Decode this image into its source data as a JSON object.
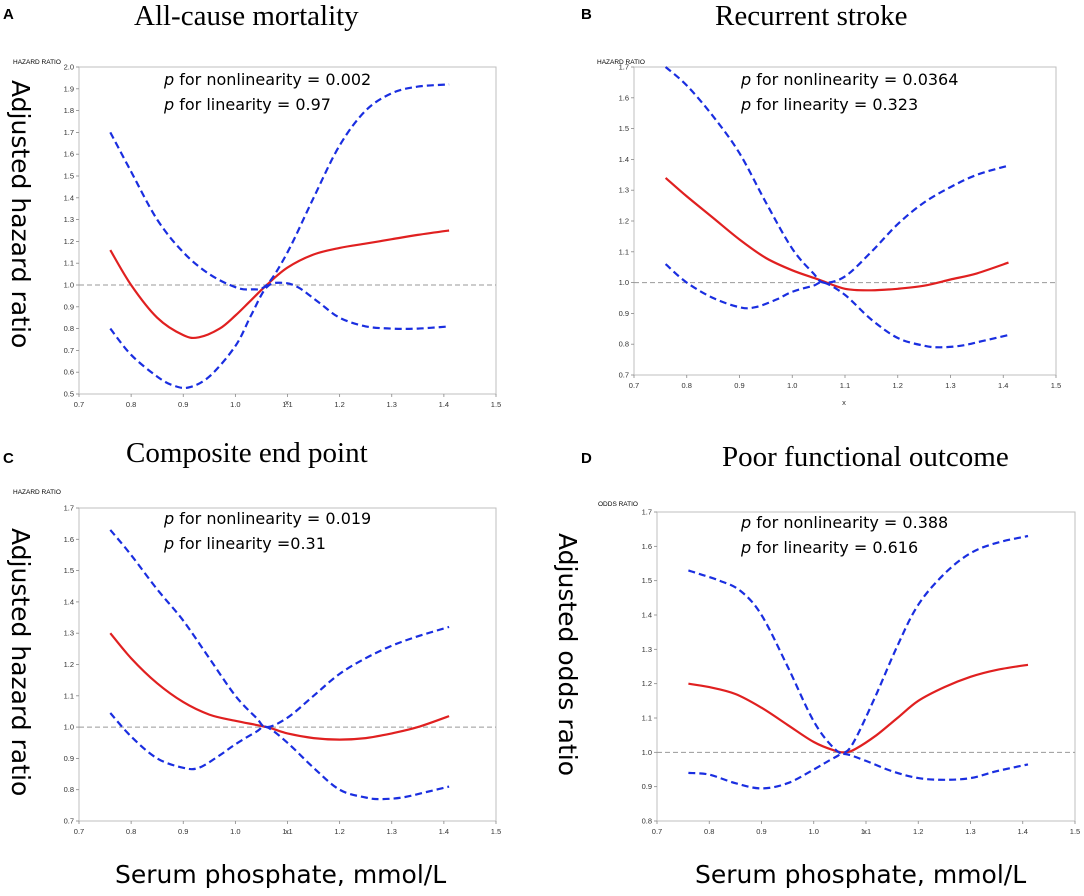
{
  "figure": {
    "shared_xlabel": "Serum phosphate, mmol/L",
    "colors": {
      "estimate": "#e02020",
      "ci": "#1a2ee0",
      "reference": "#999999",
      "frame": "#bfbfbf"
    }
  },
  "chart_data": [
    {
      "type": "line",
      "panel": "A",
      "title": "All-cause mortality",
      "ratio_label": "HAZARD RATIO",
      "outer_ylabel": "Adjusted hazard ratio",
      "xlabel": "x",
      "xlim": [
        0.7,
        1.5
      ],
      "ylim": [
        0.5,
        2.0
      ],
      "xticks": [
        "0.7",
        "0.8",
        "0.9",
        "1.0",
        "1.1",
        "1.2",
        "1.3",
        "1.4",
        "1.5"
      ],
      "yticks": [
        "0.5",
        "0.6",
        "0.7",
        "0.8",
        "0.9",
        "1.0",
        "1.1",
        "1.2",
        "1.3",
        "1.4",
        "1.5",
        "1.6",
        "1.7",
        "1.8",
        "1.9",
        "2.0"
      ],
      "reference_line": 1.0,
      "annotations": [
        "p",
        "for nonlinearity = 0.002",
        "p",
        "for linearity = 0.97"
      ],
      "series": [
        {
          "name": "estimate",
          "style": "solid",
          "x": [
            0.76,
            0.8,
            0.85,
            0.9,
            0.93,
            0.97,
            1.0,
            1.03,
            1.06,
            1.1,
            1.15,
            1.2,
            1.25,
            1.3,
            1.35,
            1.41
          ],
          "y": [
            1.16,
            1.0,
            0.85,
            0.77,
            0.76,
            0.8,
            0.86,
            0.93,
            1.0,
            1.08,
            1.14,
            1.17,
            1.19,
            1.21,
            1.23,
            1.25
          ]
        },
        {
          "name": "upper 95% CI",
          "style": "dashed",
          "x": [
            0.76,
            0.8,
            0.85,
            0.9,
            0.95,
            1.0,
            1.03,
            1.06,
            1.1,
            1.15,
            1.2,
            1.25,
            1.3,
            1.35,
            1.41
          ],
          "y": [
            1.7,
            1.52,
            1.3,
            1.15,
            1.05,
            0.99,
            0.98,
            1.0,
            1.15,
            1.4,
            1.64,
            1.8,
            1.88,
            1.91,
            1.92
          ]
        },
        {
          "name": "lower 95% CI",
          "style": "dashed",
          "x": [
            0.76,
            0.8,
            0.85,
            0.88,
            0.91,
            0.95,
            1.0,
            1.03,
            1.06,
            1.09,
            1.12,
            1.16,
            1.2,
            1.25,
            1.3,
            1.35,
            1.41
          ],
          "y": [
            0.8,
            0.68,
            0.58,
            0.54,
            0.53,
            0.58,
            0.72,
            0.86,
            0.99,
            1.01,
            0.99,
            0.92,
            0.85,
            0.81,
            0.8,
            0.8,
            0.81
          ]
        }
      ]
    },
    {
      "type": "line",
      "panel": "B",
      "title": "Recurrent stroke",
      "ratio_label": "HAZARD RATIO",
      "outer_ylabel": "",
      "xlabel": "x",
      "xlim": [
        0.7,
        1.5
      ],
      "ylim": [
        0.7,
        1.7
      ],
      "xticks": [
        "0.7",
        "0.8",
        "0.9",
        "1.0",
        "1.1",
        "1.2",
        "1.3",
        "1.4",
        "1.5"
      ],
      "yticks": [
        "0.7",
        "0.8",
        "0.9",
        "1.0",
        "1.1",
        "1.2",
        "1.3",
        "1.4",
        "1.5",
        "1.6",
        "1.7"
      ],
      "reference_line": 1.0,
      "annotations": [
        "p",
        "for nonlinearity = 0.0364",
        "p",
        "for linearity = 0.323"
      ],
      "series": [
        {
          "name": "estimate",
          "style": "solid",
          "x": [
            0.76,
            0.8,
            0.85,
            0.9,
            0.95,
            1.0,
            1.05,
            1.1,
            1.15,
            1.2,
            1.25,
            1.3,
            1.35,
            1.41
          ],
          "y": [
            1.34,
            1.28,
            1.21,
            1.14,
            1.08,
            1.04,
            1.01,
            0.98,
            0.975,
            0.98,
            0.99,
            1.01,
            1.03,
            1.065
          ]
        },
        {
          "name": "upper 95% CI",
          "style": "dashed",
          "x": [
            0.76,
            0.8,
            0.85,
            0.9,
            0.95,
            1.0,
            1.04,
            1.06,
            1.1,
            1.15,
            1.2,
            1.25,
            1.3,
            1.35,
            1.41
          ],
          "y": [
            1.7,
            1.64,
            1.54,
            1.42,
            1.26,
            1.11,
            1.03,
            1.0,
            1.02,
            1.1,
            1.19,
            1.26,
            1.31,
            1.35,
            1.38
          ]
        },
        {
          "name": "lower 95% CI",
          "style": "dashed",
          "x": [
            0.76,
            0.8,
            0.85,
            0.9,
            0.93,
            0.97,
            1.0,
            1.04,
            1.06,
            1.1,
            1.15,
            1.2,
            1.25,
            1.28,
            1.32,
            1.36,
            1.41
          ],
          "y": [
            1.06,
            1.0,
            0.95,
            0.92,
            0.92,
            0.945,
            0.97,
            0.99,
            1.0,
            0.96,
            0.88,
            0.82,
            0.795,
            0.79,
            0.795,
            0.81,
            0.83
          ]
        }
      ]
    },
    {
      "type": "line",
      "panel": "C",
      "title": "Composite end point",
      "ratio_label": "HAZARD RATIO",
      "outer_ylabel": "Adjusted hazard ratio",
      "xlabel": "x",
      "xlim": [
        0.7,
        1.5
      ],
      "ylim": [
        0.7,
        1.7
      ],
      "xticks": [
        "0.7",
        "0.8",
        "0.9",
        "1.0",
        "1.1",
        "1.2",
        "1.3",
        "1.4",
        "1.5"
      ],
      "yticks": [
        "0.7",
        "0.8",
        "0.9",
        "1.0",
        "1.1",
        "1.2",
        "1.3",
        "1.4",
        "1.5",
        "1.6",
        "1.7"
      ],
      "reference_line": 1.0,
      "annotations": [
        "p",
        "for nonlinearity = 0.019",
        "p",
        "for linearity =0.31"
      ],
      "series": [
        {
          "name": "estimate",
          "style": "solid",
          "x": [
            0.76,
            0.8,
            0.85,
            0.9,
            0.95,
            1.0,
            1.06,
            1.1,
            1.15,
            1.2,
            1.25,
            1.3,
            1.35,
            1.41
          ],
          "y": [
            1.3,
            1.22,
            1.14,
            1.08,
            1.04,
            1.02,
            1.0,
            0.98,
            0.965,
            0.96,
            0.965,
            0.98,
            1.0,
            1.035
          ]
        },
        {
          "name": "upper 95% CI",
          "style": "dashed",
          "x": [
            0.76,
            0.8,
            0.85,
            0.9,
            0.95,
            1.0,
            1.04,
            1.06,
            1.1,
            1.15,
            1.2,
            1.25,
            1.3,
            1.35,
            1.41
          ],
          "y": [
            1.63,
            1.55,
            1.44,
            1.34,
            1.22,
            1.1,
            1.03,
            1.0,
            1.03,
            1.1,
            1.17,
            1.22,
            1.26,
            1.29,
            1.32
          ]
        },
        {
          "name": "lower 95% CI",
          "style": "dashed",
          "x": [
            0.76,
            0.8,
            0.85,
            0.9,
            0.93,
            0.97,
            1.0,
            1.04,
            1.06,
            1.1,
            1.15,
            1.2,
            1.25,
            1.28,
            1.32,
            1.36,
            1.41
          ],
          "y": [
            1.045,
            0.97,
            0.9,
            0.87,
            0.87,
            0.91,
            0.945,
            0.985,
            1.0,
            0.95,
            0.87,
            0.8,
            0.775,
            0.77,
            0.775,
            0.79,
            0.81
          ]
        }
      ]
    },
    {
      "type": "line",
      "panel": "D",
      "title": "Poor functional outcome",
      "ratio_label": "ODDS RATIO",
      "outer_ylabel": "Adjusted odds ratio",
      "xlabel": "x",
      "xlim": [
        0.7,
        1.5
      ],
      "ylim": [
        0.8,
        1.7
      ],
      "xticks": [
        "0.7",
        "0.8",
        "0.9",
        "1.0",
        "1.1",
        "1.2",
        "1.3",
        "1.4",
        "1.5"
      ],
      "yticks": [
        "0.8",
        "0.9",
        "1.0",
        "1.1",
        "1.2",
        "1.3",
        "1.4",
        "1.5",
        "1.6",
        "1.7"
      ],
      "reference_line": 1.0,
      "annotations": [
        "p",
        "for nonlinearity = 0.388",
        "p",
        "for linearity = 0.616"
      ],
      "series": [
        {
          "name": "estimate",
          "style": "solid",
          "x": [
            0.76,
            0.8,
            0.85,
            0.9,
            0.95,
            1.0,
            1.04,
            1.06,
            1.08,
            1.12,
            1.16,
            1.2,
            1.25,
            1.3,
            1.35,
            1.41
          ],
          "y": [
            1.2,
            1.19,
            1.17,
            1.13,
            1.08,
            1.03,
            1.005,
            1.0,
            1.01,
            1.05,
            1.1,
            1.15,
            1.19,
            1.22,
            1.24,
            1.255
          ]
        },
        {
          "name": "upper 95% CI",
          "style": "dashed",
          "x": [
            0.76,
            0.78,
            0.82,
            0.86,
            0.9,
            0.95,
            1.0,
            1.04,
            1.06,
            1.08,
            1.12,
            1.16,
            1.2,
            1.25,
            1.3,
            1.35,
            1.41
          ],
          "y": [
            1.53,
            1.52,
            1.5,
            1.47,
            1.4,
            1.25,
            1.09,
            1.01,
            1.0,
            1.04,
            1.17,
            1.31,
            1.43,
            1.52,
            1.58,
            1.61,
            1.63
          ]
        },
        {
          "name": "lower 95% CI",
          "style": "dashed",
          "x": [
            0.76,
            0.8,
            0.85,
            0.9,
            0.95,
            1.0,
            1.04,
            1.06,
            1.1,
            1.15,
            1.2,
            1.25,
            1.3,
            1.35,
            1.41
          ],
          "y": [
            0.94,
            0.935,
            0.91,
            0.895,
            0.91,
            0.95,
            0.985,
            0.995,
            0.975,
            0.945,
            0.925,
            0.92,
            0.925,
            0.945,
            0.965
          ]
        }
      ]
    }
  ]
}
